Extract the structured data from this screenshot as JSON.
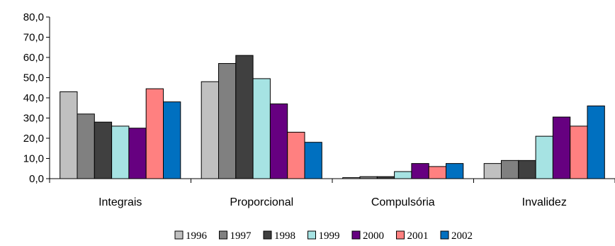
{
  "chart_data": {
    "type": "bar",
    "categories": [
      "Integrais",
      "Proporcional",
      "Compulsória",
      "Invalidez"
    ],
    "series": [
      {
        "name": "1996",
        "color": "#c0c0c0",
        "values": [
          43.0,
          48.0,
          0.5,
          7.5
        ]
      },
      {
        "name": "1997",
        "color": "#808080",
        "values": [
          32.0,
          57.0,
          1.0,
          9.0
        ]
      },
      {
        "name": "1998",
        "color": "#404040",
        "values": [
          28.0,
          61.0,
          1.0,
          9.0
        ]
      },
      {
        "name": "1999",
        "color": "#a6e3e3",
        "values": [
          26.0,
          49.5,
          3.5,
          21.0
        ]
      },
      {
        "name": "2000",
        "color": "#660080",
        "values": [
          25.0,
          37.0,
          7.5,
          30.5
        ]
      },
      {
        "name": "2001",
        "color": "#ff8080",
        "values": [
          44.5,
          23.0,
          6.0,
          26.0
        ]
      },
      {
        "name": "2002",
        "color": "#0070c0",
        "values": [
          38.0,
          18.0,
          7.5,
          36.0
        ]
      }
    ],
    "yticks": [
      "0,0",
      "10,0",
      "20,0",
      "30,0",
      "40,0",
      "50,0",
      "60,0",
      "70,0",
      "80,0"
    ],
    "ylim": [
      0,
      80
    ],
    "legend_position": "bottom",
    "grid": false
  }
}
